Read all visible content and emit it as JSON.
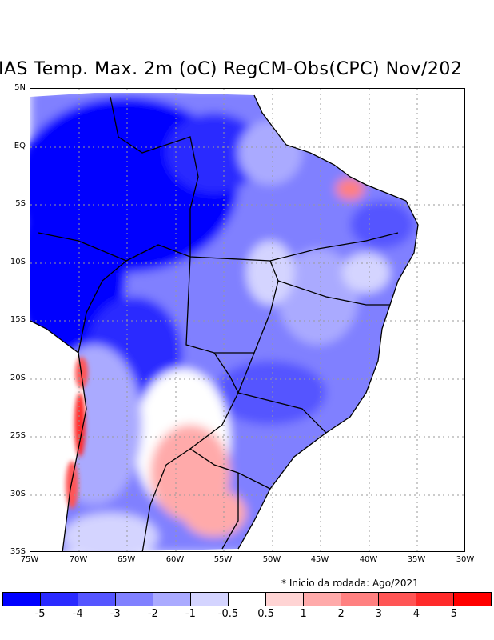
{
  "title": "IAS Temp. Max. 2m (oC) RegCM-Obs(CPC) Nov/202",
  "lat_labels": [
    "5N",
    "EQ",
    "5S",
    "10S",
    "15S",
    "20S",
    "25S",
    "30S",
    "35S"
  ],
  "lon_labels": [
    "75W",
    "70W",
    "65W",
    "60W",
    "55W",
    "50W",
    "45W",
    "40W",
    "35W",
    "30W"
  ],
  "note": "* Inicio da rodada: Ago/2021",
  "colorbar": {
    "colors": [
      "#0000ff",
      "#2a2aff",
      "#5555ff",
      "#8080ff",
      "#aaaaff",
      "#d4d4ff",
      "#ffffff",
      "#ffd4d4",
      "#ffaaaa",
      "#ff8080",
      "#ff5555",
      "#ff2a2a",
      "#ff0000"
    ],
    "labels": [
      "-5",
      "-4",
      "-3",
      "-2",
      "-1",
      "-0.5",
      "0.5",
      "1",
      "2",
      "3",
      "4",
      "5"
    ]
  }
}
